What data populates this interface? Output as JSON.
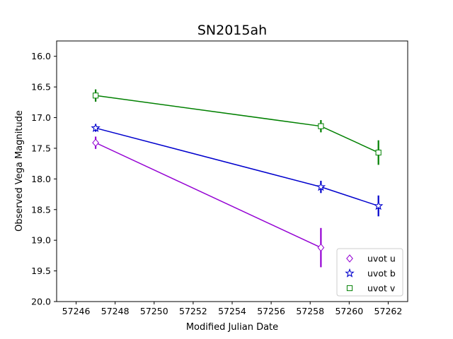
{
  "chart_data": {
    "type": "line",
    "title": "SN2015ah",
    "xlabel": "Modified Julian Date",
    "ylabel": "Observed Vega Magnitude",
    "xlim": [
      57245,
      57263
    ],
    "ylim": [
      20.0,
      15.75
    ],
    "y_inverted": true,
    "grid": false,
    "legend_position": "lower-right",
    "x_ticks": [
      "57246",
      "57248",
      "57250",
      "57252",
      "57254",
      "57256",
      "57258",
      "57260",
      "57262"
    ],
    "y_ticks": [
      "16.0",
      "16.5",
      "17.0",
      "17.5",
      "18.0",
      "18.5",
      "19.0",
      "19.5",
      "20.0"
    ],
    "series": [
      {
        "name": "uvot u",
        "color": "#9400D3",
        "marker": "diamond",
        "x": [
          57247.0,
          57258.55
        ],
        "y": [
          17.41,
          19.12
        ],
        "yerr": [
          0.1,
          0.32
        ]
      },
      {
        "name": "uvot b",
        "color": "#0000CD",
        "marker": "star",
        "x": [
          57247.0,
          57258.55,
          57261.5
        ],
        "y": [
          17.17,
          18.13,
          18.44
        ],
        "yerr": [
          0.06,
          0.1,
          0.17
        ]
      },
      {
        "name": "uvot v",
        "color": "#008000",
        "marker": "square",
        "x": [
          57247.0,
          57258.55,
          57261.5
        ],
        "y": [
          16.64,
          17.14,
          17.57
        ],
        "yerr": [
          0.1,
          0.1,
          0.2
        ]
      }
    ]
  }
}
